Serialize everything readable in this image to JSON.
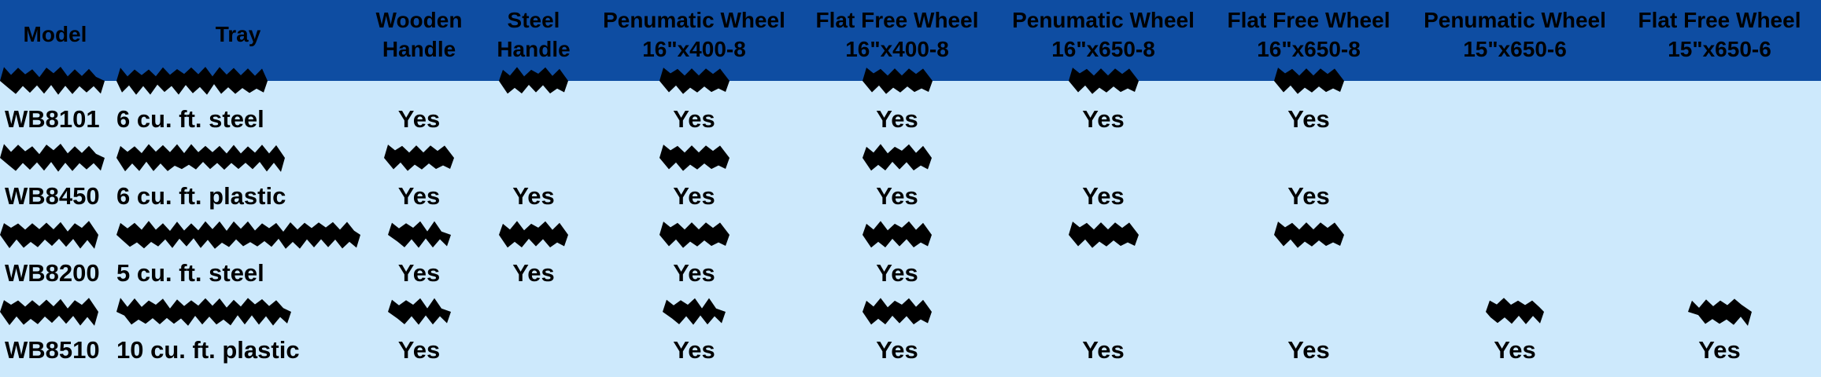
{
  "colors": {
    "header_bg": "#0e4da2",
    "body_bg": "#cde9fc",
    "text": "#000000",
    "redaction": "#000000"
  },
  "table": {
    "columns": [
      {
        "id": "model",
        "label": "Model"
      },
      {
        "id": "tray",
        "label": "Tray"
      },
      {
        "id": "wooden-handle",
        "label": "Wooden\nHandle"
      },
      {
        "id": "steel-handle",
        "label": "Steel\nHandle"
      },
      {
        "id": "pneumatic-wheel-16x400-8",
        "label": "Penumatic Wheel\n16\"x400-8"
      },
      {
        "id": "flat-free-wheel-16x400-8",
        "label": "Flat Free Wheel\n16\"x400-8"
      },
      {
        "id": "pneumatic-wheel-16x650-8",
        "label": "Penumatic Wheel\n16\"x650-8"
      },
      {
        "id": "flat-free-wheel-16x650-8",
        "label": "Flat Free Wheel\n16\"x650-8"
      },
      {
        "id": "pneumatic-wheel-15x650-6",
        "label": "Penumatic Wheel\n15\"x650-6"
      },
      {
        "id": "flat-free-wheel-15x650-6",
        "label": "Flat Free Wheel\n15\"x650-6"
      }
    ],
    "rows": [
      {
        "redacted": true,
        "cells": [
          {
            "blob": 133
          },
          {
            "blob": 192
          },
          {
            "text": ""
          },
          {
            "blob": 88
          },
          {
            "blob": 89
          },
          {
            "blob": 89
          },
          {
            "blob": 89
          },
          {
            "blob": 89
          },
          {
            "text": ""
          },
          {
            "text": ""
          }
        ]
      },
      {
        "redacted": false,
        "cells": [
          {
            "text": "WB8101"
          },
          {
            "text": "6 cu. ft. steel"
          },
          {
            "text": "Yes"
          },
          {
            "text": ""
          },
          {
            "text": "Yes"
          },
          {
            "text": "Yes"
          },
          {
            "text": "Yes"
          },
          {
            "text": "Yes"
          },
          {
            "text": ""
          },
          {
            "text": ""
          }
        ]
      },
      {
        "redacted": true,
        "cells": [
          {
            "blob": 133
          },
          {
            "blob": 214
          },
          {
            "blob": 89
          },
          {
            "text": ""
          },
          {
            "blob": 89
          },
          {
            "blob": 88
          },
          {
            "text": ""
          },
          {
            "text": ""
          },
          {
            "text": ""
          },
          {
            "text": ""
          }
        ]
      },
      {
        "redacted": false,
        "cells": [
          {
            "text": "WB8450"
          },
          {
            "text": "6 cu. ft. plastic"
          },
          {
            "text": "Yes"
          },
          {
            "text": "Yes"
          },
          {
            "text": "Yes"
          },
          {
            "text": "Yes"
          },
          {
            "text": "Yes"
          },
          {
            "text": "Yes"
          },
          {
            "text": ""
          },
          {
            "text": ""
          }
        ]
      },
      {
        "redacted": true,
        "cells": [
          {
            "blob": 125
          },
          {
            "blob": 310
          },
          {
            "blob": 80
          },
          {
            "blob": 88
          },
          {
            "blob": 89
          },
          {
            "blob": 88
          },
          {
            "blob": 89
          },
          {
            "blob": 89
          },
          {
            "text": ""
          },
          {
            "text": ""
          }
        ]
      },
      {
        "redacted": false,
        "cells": [
          {
            "text": "WB8200"
          },
          {
            "text": "5 cu. ft. steel"
          },
          {
            "text": "Yes"
          },
          {
            "text": "Yes"
          },
          {
            "text": "Yes"
          },
          {
            "text": "Yes"
          },
          {
            "text": ""
          },
          {
            "text": ""
          },
          {
            "text": ""
          },
          {
            "text": ""
          }
        ]
      },
      {
        "redacted": true,
        "cells": [
          {
            "blob": 125
          },
          {
            "blob": 222
          },
          {
            "blob": 80
          },
          {
            "text": ""
          },
          {
            "blob": 80
          },
          {
            "blob": 88
          },
          {
            "text": ""
          },
          {
            "text": ""
          },
          {
            "blob": 74
          },
          {
            "blob": 81
          }
        ]
      },
      {
        "redacted": false,
        "cells": [
          {
            "text": "WB8510"
          },
          {
            "text": "10 cu. ft. plastic"
          },
          {
            "text": "Yes"
          },
          {
            "text": ""
          },
          {
            "text": "Yes"
          },
          {
            "text": "Yes"
          },
          {
            "text": "Yes"
          },
          {
            "text": "Yes"
          },
          {
            "text": "Yes"
          },
          {
            "text": "Yes"
          }
        ]
      }
    ]
  }
}
